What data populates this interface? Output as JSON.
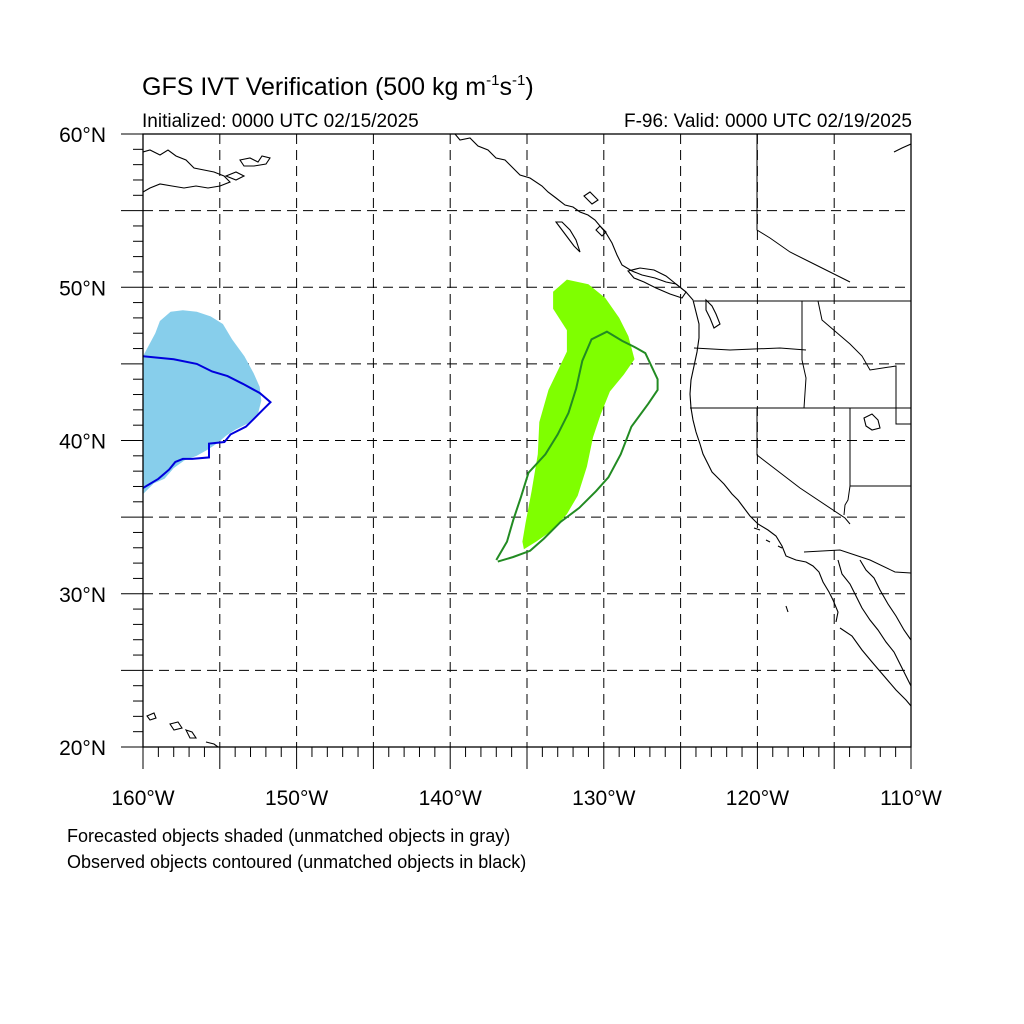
{
  "title": {
    "text": "GFS IVT Verification (500 kg m",
    "sup1": "-1",
    "mid": "s",
    "sup2": "-1",
    "end": ")"
  },
  "initialized": "Initialized: 0000 UTC 02/15/2025",
  "valid": "F-96: Valid: 0000 UTC 02/19/2025",
  "footer": {
    "line1": "Forecasted objects shaded (unmatched objects in gray)",
    "line2": "Observed objects contoured (unmatched objects in black)"
  },
  "map": {
    "lon_range": [
      -160,
      -110
    ],
    "lat_range": [
      20,
      60
    ],
    "gridlines": "dashed",
    "lat_labels": [
      {
        "lat": 60,
        "text": "60°N"
      },
      {
        "lat": 50,
        "text": "50°N"
      },
      {
        "lat": 40,
        "text": "40°N"
      },
      {
        "lat": 30,
        "text": "30°N"
      },
      {
        "lat": 20,
        "text": "20°N"
      }
    ],
    "lon_labels": [
      {
        "lon": -160,
        "text": "160°W"
      },
      {
        "lon": -150,
        "text": "150°W"
      },
      {
        "lon": -140,
        "text": "140°W"
      },
      {
        "lon": -130,
        "text": "130°W"
      },
      {
        "lon": -120,
        "text": "120°W"
      },
      {
        "lon": -110,
        "text": "110°W"
      }
    ],
    "colors": {
      "forecast_object_1": "#87ceeb",
      "observed_object_1": "#0000dd",
      "forecast_object_2": "#7fff00",
      "observed_object_2": "#228b22",
      "coastline": "#000000"
    },
    "objects": [
      {
        "name": "forecast-object-west",
        "kind": "forecast",
        "color": "#87ceeb",
        "lonlat": [
          [
            -160,
            36.5
          ],
          [
            -159.3,
            37.2
          ],
          [
            -158.6,
            37.5
          ],
          [
            -158,
            38.2
          ],
          [
            -157.3,
            38.7
          ],
          [
            -156.5,
            39
          ],
          [
            -155.8,
            39.4
          ],
          [
            -155.2,
            39.8
          ],
          [
            -154.6,
            40.3
          ],
          [
            -154,
            40.7
          ],
          [
            -153.2,
            41.1
          ],
          [
            -152.5,
            41.8
          ],
          [
            -152.3,
            42.6
          ],
          [
            -152.4,
            43.5
          ],
          [
            -152.8,
            44.4
          ],
          [
            -153.4,
            45.5
          ],
          [
            -154.2,
            46.6
          ],
          [
            -154.8,
            47.6
          ],
          [
            -155.6,
            48.1
          ],
          [
            -156.5,
            48.4
          ],
          [
            -157.4,
            48.5
          ],
          [
            -158.2,
            48.4
          ],
          [
            -158.9,
            47.8
          ],
          [
            -159.2,
            47.0
          ],
          [
            -160,
            45.5
          ]
        ]
      },
      {
        "name": "observed-object-west",
        "kind": "observed",
        "color": "#0000dd",
        "lonlat": [
          [
            -160,
            45.5
          ],
          [
            -158,
            45.3
          ],
          [
            -156.5,
            45
          ],
          [
            -155.5,
            44.5
          ],
          [
            -154.5,
            44.2
          ],
          [
            -153.5,
            43.7
          ],
          [
            -152.4,
            43.1
          ],
          [
            -151.7,
            42.5
          ],
          [
            -152.2,
            42
          ],
          [
            -152.9,
            41.3
          ],
          [
            -153.3,
            40.9
          ],
          [
            -154.3,
            40.4
          ],
          [
            -154.7,
            39.9
          ],
          [
            -155.7,
            39.8
          ],
          [
            -155.7,
            38.9
          ],
          [
            -156.8,
            38.8
          ],
          [
            -157.4,
            38.8
          ],
          [
            -157.9,
            38.6
          ],
          [
            -158.3,
            38.1
          ],
          [
            -159,
            37.5
          ],
          [
            -160,
            36.9
          ]
        ]
      },
      {
        "name": "forecast-object-east",
        "kind": "forecast",
        "color": "#7fff00",
        "lonlat": [
          [
            -135.2,
            32.9
          ],
          [
            -134.4,
            33.4
          ],
          [
            -133.4,
            34.1
          ],
          [
            -132.4,
            35.2
          ],
          [
            -131.7,
            36.4
          ],
          [
            -131.1,
            38.3
          ],
          [
            -130.7,
            40.2
          ],
          [
            -130.2,
            41.7
          ],
          [
            -129.6,
            43.2
          ],
          [
            -128.7,
            44.3
          ],
          [
            -128.0,
            45.3
          ],
          [
            -128.4,
            46.8
          ],
          [
            -129.0,
            48
          ],
          [
            -129.9,
            49.3
          ],
          [
            -131.0,
            50.2
          ],
          [
            -132.4,
            50.5
          ],
          [
            -133.3,
            49.7
          ],
          [
            -133.3,
            48.6
          ],
          [
            -132.4,
            47.2
          ],
          [
            -132.4,
            45.8
          ],
          [
            -133.6,
            43.3
          ],
          [
            -134.2,
            41.2
          ],
          [
            -134.3,
            39.1
          ],
          [
            -134.7,
            36.7
          ],
          [
            -135.1,
            34.6
          ],
          [
            -135.3,
            33.4
          ]
        ]
      },
      {
        "name": "observed-object-east",
        "kind": "observed",
        "color": "#228b22",
        "lonlat": [
          [
            -136.9,
            32.1
          ],
          [
            -135.9,
            32.4
          ],
          [
            -134.8,
            32.8
          ],
          [
            -133.9,
            33.6
          ],
          [
            -132.8,
            34.7
          ],
          [
            -131.6,
            35.6
          ],
          [
            -130.5,
            36.7
          ],
          [
            -129.7,
            37.6
          ],
          [
            -128.9,
            39.1
          ],
          [
            -128.2,
            40.9
          ],
          [
            -127.1,
            42.4
          ],
          [
            -126.5,
            43.3
          ],
          [
            -126.5,
            44.0
          ],
          [
            -127.3,
            45.7
          ],
          [
            -128.0,
            46.1
          ],
          [
            -128.8,
            46.5
          ],
          [
            -129.8,
            47.1
          ],
          [
            -130.8,
            46.6
          ],
          [
            -131.4,
            45.2
          ],
          [
            -131.8,
            43.4
          ],
          [
            -132.3,
            41.8
          ],
          [
            -133.0,
            40.4
          ],
          [
            -133.8,
            39.1
          ],
          [
            -134.9,
            37.9
          ],
          [
            -135.4,
            36.3
          ],
          [
            -135.9,
            34.8
          ],
          [
            -136.3,
            33.4
          ],
          [
            -137.0,
            32.2
          ]
        ]
      }
    ]
  }
}
